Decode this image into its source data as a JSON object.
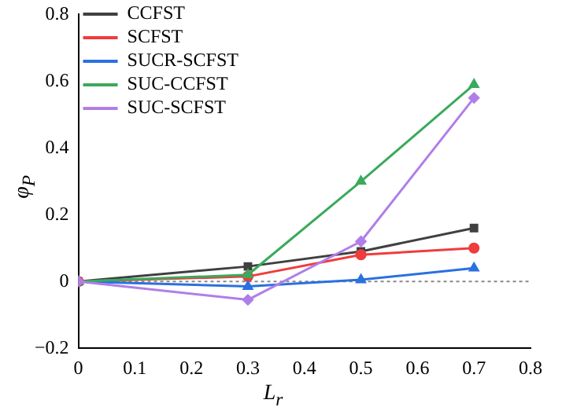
{
  "chart_data": {
    "type": "line",
    "xlabel": "L$_{r}$",
    "ylabel": "φ$_{P}$",
    "x": [
      0,
      0.3,
      0.5,
      0.7
    ],
    "series": [
      {
        "name": "CCFST",
        "color": "#404040",
        "marker": "square",
        "values": [
          0,
          0.045,
          0.09,
          0.16
        ]
      },
      {
        "name": "SCFST",
        "color": "#f03c3c",
        "marker": "circle",
        "values": [
          0,
          0.015,
          0.08,
          0.1
        ]
      },
      {
        "name": "SUCR-SCFST",
        "color": "#2a70e0",
        "marker": "triangle",
        "values": [
          0,
          -0.015,
          0.005,
          0.04
        ]
      },
      {
        "name": "SUC-CCFST",
        "color": "#3aaa5c",
        "marker": "triangle",
        "values": [
          0,
          0.02,
          0.3,
          0.59
        ]
      },
      {
        "name": "SUC-SCFST",
        "color": "#b07ee8",
        "marker": "diamond",
        "values": [
          0,
          -0.055,
          0.12,
          0.55
        ]
      }
    ],
    "xlim": [
      0,
      0.8
    ],
    "xticks": [
      0,
      0.1,
      0.2,
      0.3,
      0.4,
      0.5,
      0.6,
      0.7,
      0.8
    ],
    "ylim": [
      -0.2,
      0.8
    ],
    "yticks": [
      -0.2,
      0,
      0.2,
      0.4,
      0.6,
      0.8
    ],
    "ref_lines": [
      {
        "axis": "y",
        "value": 0,
        "color": "#888888",
        "line_style": "dotted"
      }
    ],
    "grid": false,
    "legend": "top left",
    "line_style": "solid"
  }
}
